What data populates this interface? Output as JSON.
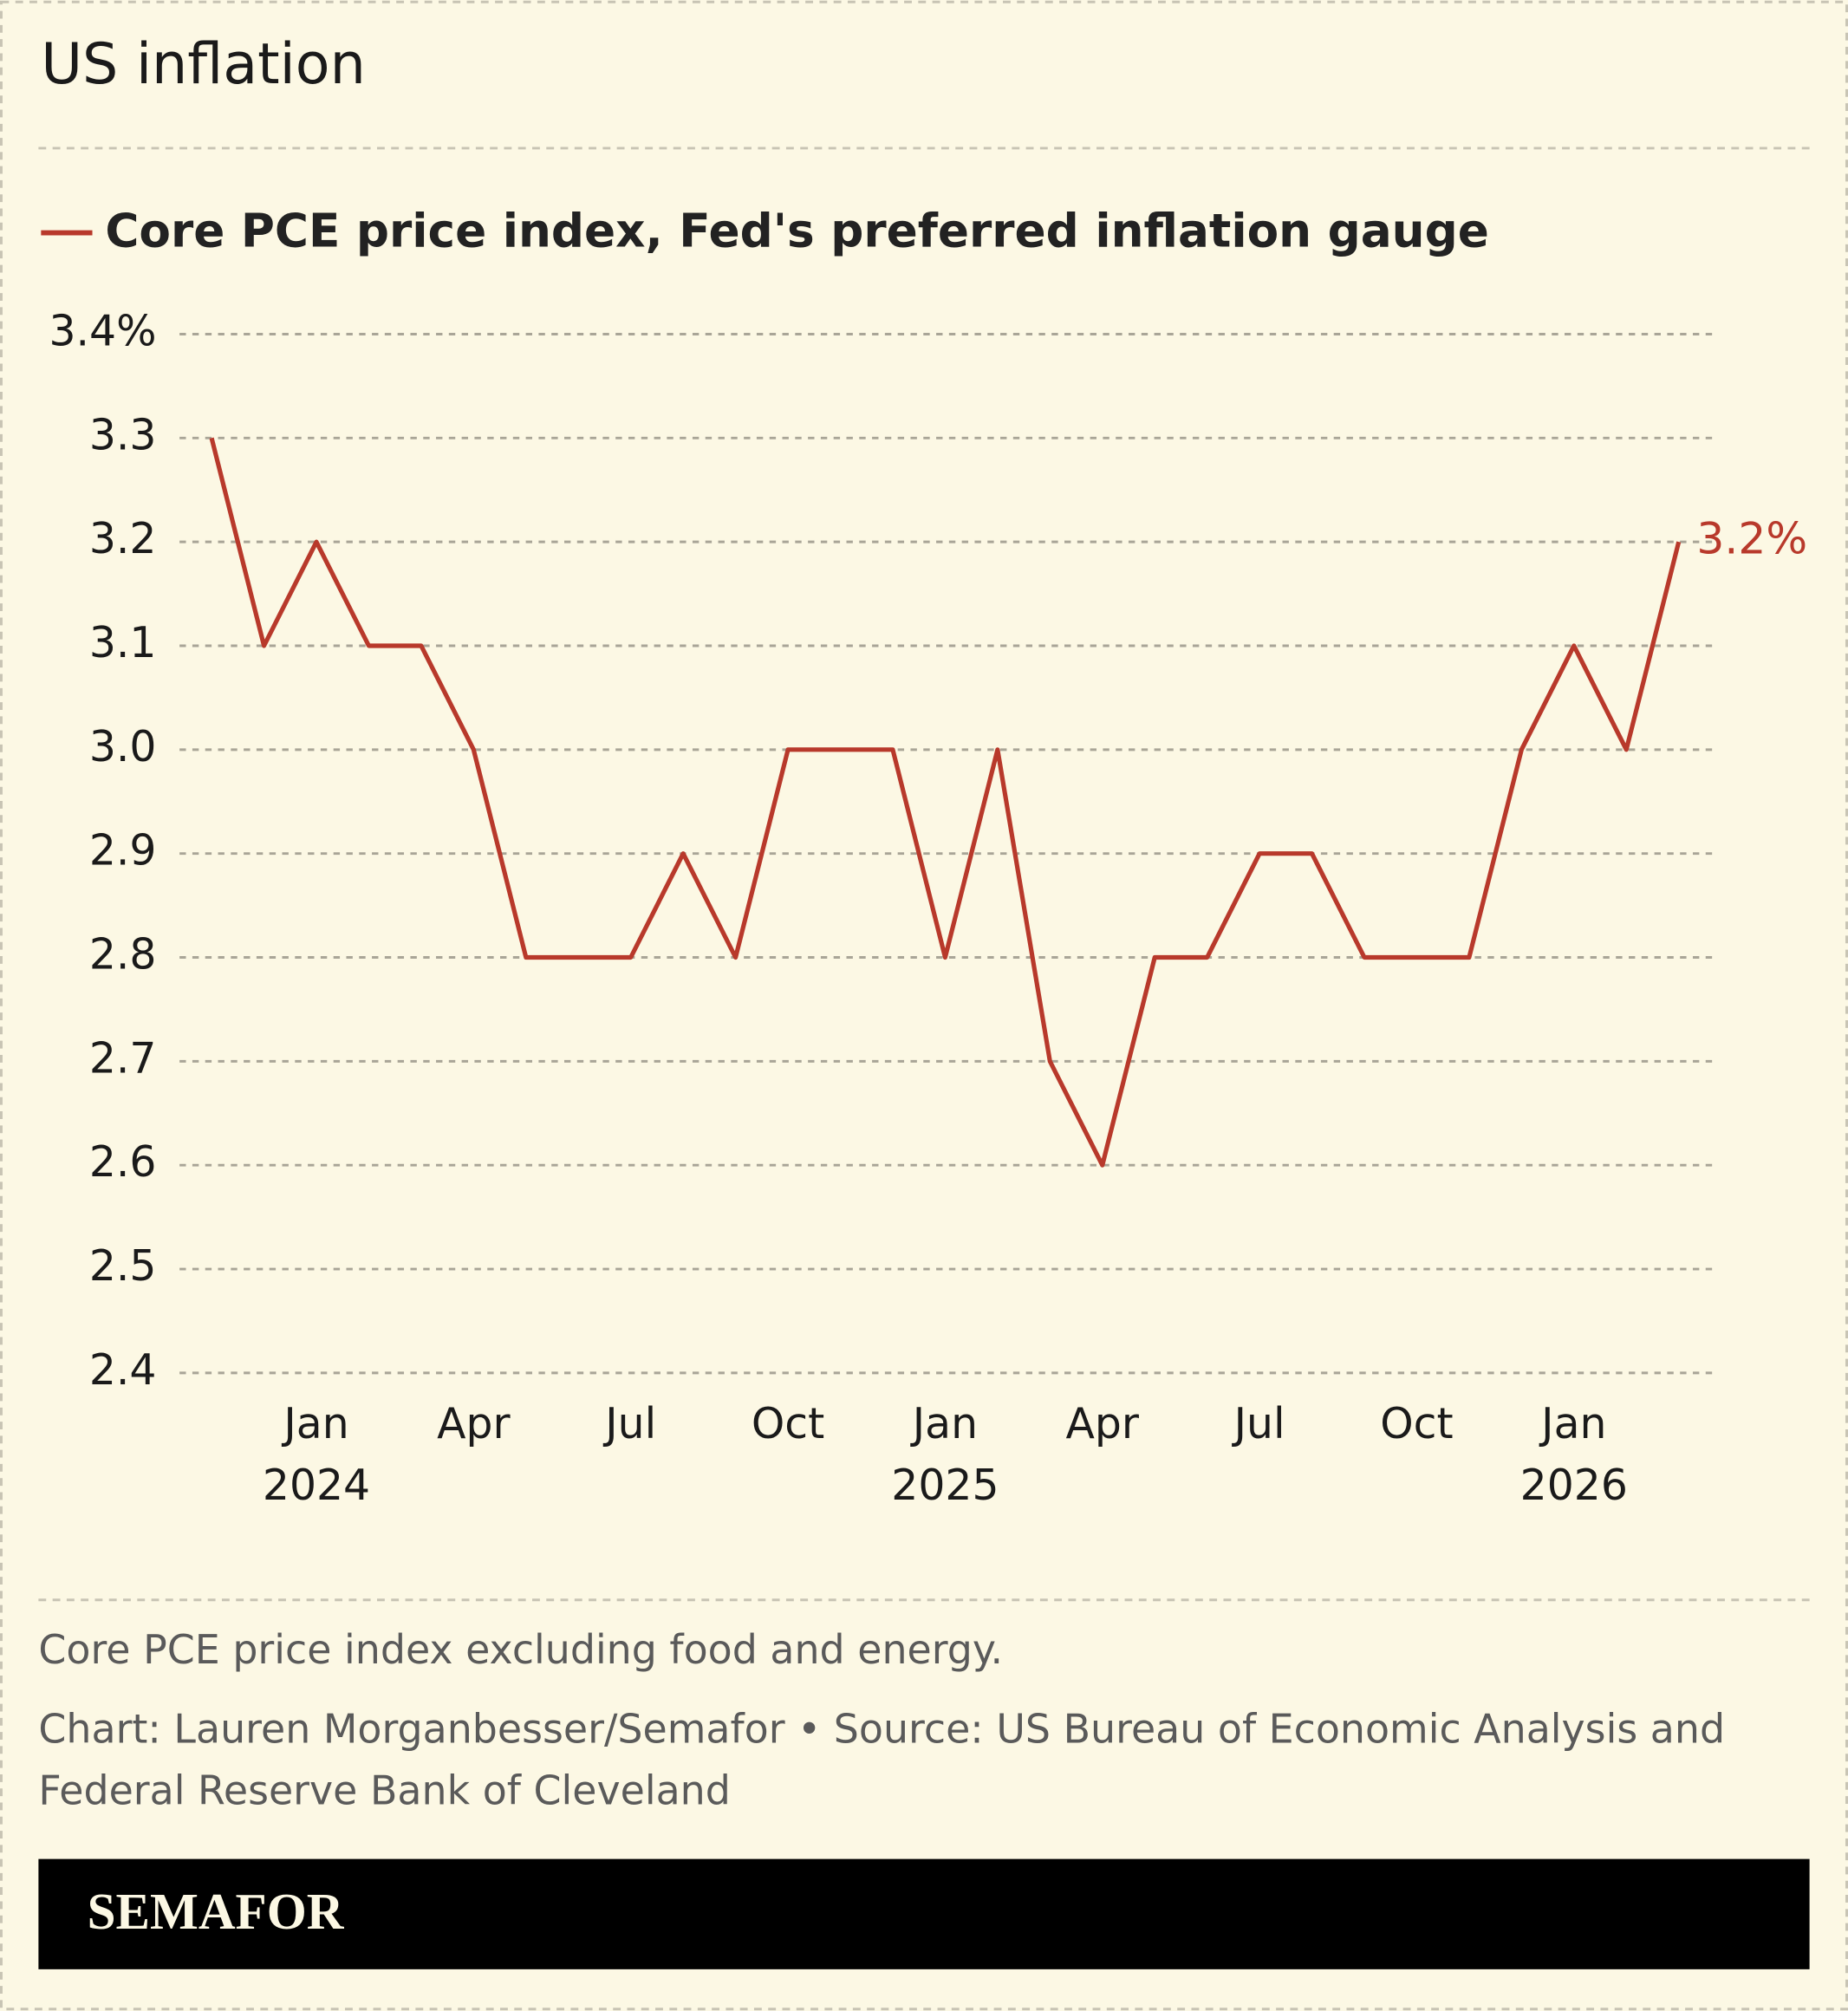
{
  "chart_data": {
    "type": "line",
    "title": "US inflation",
    "x": [
      "2023-11",
      "2023-12",
      "2024-01",
      "2024-02",
      "2024-03",
      "2024-04",
      "2024-05",
      "2024-06",
      "2024-07",
      "2024-08",
      "2024-09",
      "2024-10",
      "2024-11",
      "2024-12",
      "2025-01",
      "2025-02",
      "2025-03",
      "2025-04",
      "2025-05",
      "2025-06",
      "2025-07",
      "2025-08",
      "2025-09",
      "2025-10",
      "2025-11",
      "2025-12",
      "2026-01",
      "2026-02",
      "2026-03"
    ],
    "series": [
      {
        "name": "Core PCE price index, Fed's preferred inflation gauge",
        "color": "#b8392b",
        "values": [
          3.3,
          3.1,
          3.2,
          3.1,
          3.1,
          3.0,
          2.8,
          2.8,
          2.8,
          2.9,
          2.8,
          3.0,
          3.0,
          3.0,
          2.8,
          3.0,
          2.7,
          2.6,
          2.8,
          2.8,
          2.9,
          2.9,
          2.8,
          2.8,
          2.8,
          3.0,
          3.1,
          3.0,
          3.2
        ],
        "value_labels": [
          null,
          null,
          null,
          null,
          null,
          null,
          null,
          null,
          null,
          null,
          null,
          null,
          null,
          null,
          null,
          null,
          null,
          null,
          null,
          null,
          null,
          null,
          null,
          null,
          null,
          null,
          null,
          null,
          "3.2%"
        ]
      }
    ],
    "ylim": [
      2.4,
      3.4
    ],
    "yticks": [
      2.4,
      2.5,
      2.6,
      2.7,
      2.8,
      2.9,
      {
        "value": 3.0,
        "label": "3.0"
      },
      3.1,
      3.2,
      3.3,
      {
        "value": 3.4,
        "label": "3.4%"
      }
    ],
    "xticks": [
      {
        "value": "2024-01",
        "label": "Jan",
        "sublabel": "2024"
      },
      {
        "value": "2024-04",
        "label": "Apr"
      },
      {
        "value": "2024-07",
        "label": "Jul"
      },
      {
        "value": "2024-10",
        "label": "Oct"
      },
      {
        "value": "2025-01",
        "label": "Jan",
        "sublabel": "2025"
      },
      {
        "value": "2025-04",
        "label": "Apr"
      },
      {
        "value": "2025-07",
        "label": "Jul"
      },
      {
        "value": "2025-10",
        "label": "Oct"
      },
      {
        "value": "2026-01",
        "label": "Jan",
        "sublabel": "2026"
      }
    ],
    "grid": true,
    "note": "Core PCE price index excluding food and energy.",
    "credit": [
      "Chart: Lauren Morganbesser/Semafor • Source: US Bureau of Economic Analysis and",
      "Federal Reserve Bank of Cleveland"
    ],
    "brand": "SEMAFOR"
  }
}
